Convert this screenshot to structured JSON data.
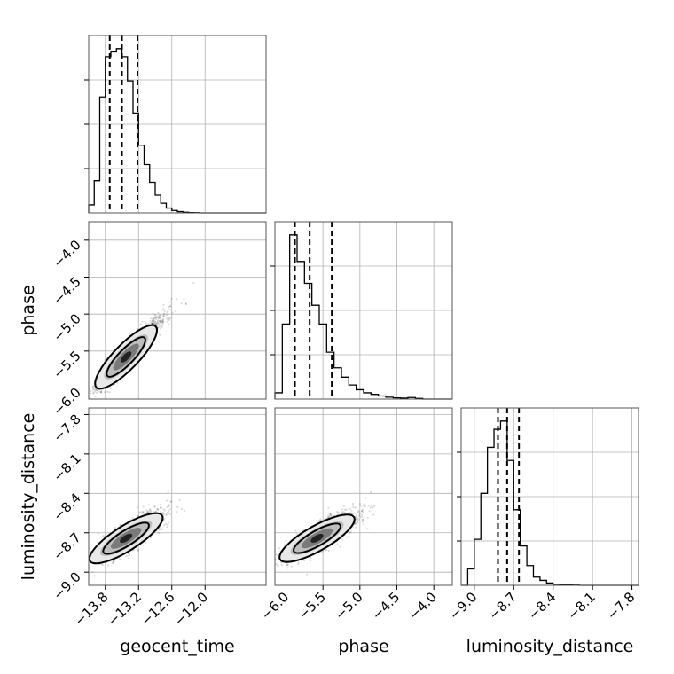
{
  "chart_data": {
    "type": "corner",
    "parameters": [
      {
        "name": "geocent_time",
        "range": [
          -14.1,
          -10.9
        ],
        "ticks": [
          -13.8,
          -13.2,
          -12.6,
          -12.0
        ],
        "tick_labels": [
          "−13.8",
          "−13.2",
          "−12.6",
          "−12.0"
        ],
        "mean": -13.45,
        "sd": 0.24
      },
      {
        "name": "phase",
        "range": [
          -6.15,
          -3.75
        ],
        "ticks": [
          -6.0,
          -5.5,
          -5.0,
          -4.5,
          -4.0
        ],
        "tick_labels": [
          "−6.0",
          "−5.5",
          "−5.0",
          "−4.5",
          "−4.0"
        ],
        "mean": -5.6,
        "sd": 0.2
      },
      {
        "name": "luminosity_distance",
        "range": [
          -9.1,
          -7.75
        ],
        "ticks": [
          -9.0,
          -8.7,
          -8.4,
          -8.1,
          -7.8
        ],
        "tick_labels": [
          "−9.0",
          "−8.7",
          "−8.4",
          "−8.1",
          "−7.8"
        ],
        "mean": -8.75,
        "sd": 0.08
      }
    ],
    "histograms": [
      {
        "param": "geocent_time",
        "quantiles": [
          -13.72,
          -13.5,
          -13.22
        ],
        "bins": [
          -14.1,
          -14.0,
          -13.9,
          -13.8,
          -13.7,
          -13.6,
          -13.5,
          -13.4,
          -13.3,
          -13.2,
          -13.1,
          -13.0,
          -12.9,
          -12.8,
          -12.7,
          -12.6,
          -12.5,
          -12.4,
          -12.3,
          -12.2,
          -12.1,
          -12.0,
          -11.9,
          -11.8,
          -11.7,
          -11.6,
          -11.5,
          -11.4,
          -11.3,
          -11.2,
          -11.1,
          -11.0,
          -10.9
        ],
        "counts": [
          0.05,
          0.2,
          0.72,
          0.97,
          1.0,
          1.02,
          0.97,
          0.82,
          0.62,
          0.42,
          0.3,
          0.19,
          0.11,
          0.06,
          0.03,
          0.015,
          0.008,
          0.004,
          0.002,
          0.001,
          0,
          0,
          0,
          0,
          0,
          0,
          0,
          0,
          0,
          0,
          0,
          0
        ]
      },
      {
        "param": "phase",
        "quantiles": [
          -5.88,
          -5.68,
          -5.38
        ],
        "bins": [
          -6.15,
          -6.05,
          -5.95,
          -5.85,
          -5.75,
          -5.65,
          -5.55,
          -5.45,
          -5.35,
          -5.25,
          -5.15,
          -5.05,
          -4.95,
          -4.85,
          -4.75,
          -4.65,
          -4.55,
          -4.45,
          -4.35,
          -4.25,
          -4.15,
          -4.05,
          -3.95,
          -3.85,
          -3.75
        ],
        "counts": [
          0.04,
          0.48,
          1.05,
          0.88,
          0.74,
          0.6,
          0.48,
          0.3,
          0.2,
          0.14,
          0.09,
          0.06,
          0.04,
          0.03,
          0.02,
          0.012,
          0.008,
          0.006,
          0.01,
          0.004,
          0,
          0,
          0,
          0
        ]
      },
      {
        "param": "luminosity_distance",
        "quantiles": [
          -8.82,
          -8.75,
          -8.66
        ],
        "bins": [
          -9.1,
          -9.05,
          -9.0,
          -8.95,
          -8.9,
          -8.85,
          -8.8,
          -8.75,
          -8.7,
          -8.65,
          -8.6,
          -8.55,
          -8.5,
          -8.45,
          -8.4,
          -8.35,
          -8.3,
          -8.25,
          -8.2,
          -8.15,
          -8.1,
          -8.05,
          -8.0,
          -7.95,
          -7.9,
          -7.85,
          -7.8,
          -7.75
        ],
        "counts": [
          0.0,
          0.1,
          0.28,
          0.56,
          0.84,
          0.95,
          1.0,
          0.76,
          0.46,
          0.24,
          0.12,
          0.05,
          0.03,
          0.014,
          0.007,
          0.004,
          0.002,
          0.001,
          0,
          0,
          0,
          0,
          0,
          0,
          0,
          0,
          0
        ]
      }
    ],
    "scatter_panels": [
      {
        "x": "geocent_time",
        "y": "phase",
        "correlation": 0.93
      },
      {
        "x": "geocent_time",
        "y": "luminosity_distance",
        "correlation": 0.8
      },
      {
        "x": "phase",
        "y": "luminosity_distance",
        "correlation": 0.8
      }
    ],
    "grid": true
  }
}
